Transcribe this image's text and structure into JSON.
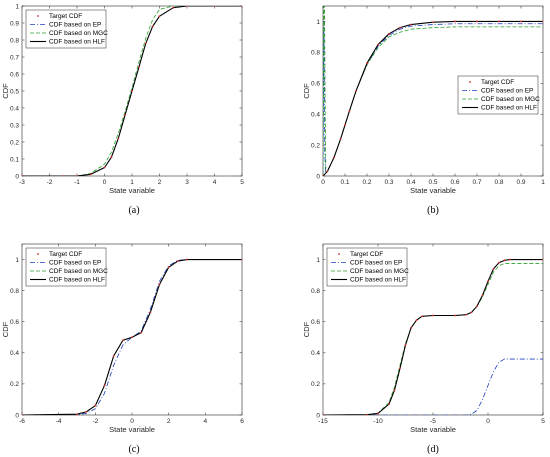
{
  "chart_data": [
    {
      "type": "line",
      "caption": "(a)",
      "xlabel": "State variable",
      "ylabel": "CDF",
      "xlim": [
        -3,
        5
      ],
      "ylim": [
        0,
        1
      ],
      "xticks": [
        "-3",
        "-2",
        "-1",
        "0",
        "1",
        "2",
        "3",
        "4",
        "5"
      ],
      "yticks": [
        "0",
        "0.1",
        "0.2",
        "0.3",
        "0.4",
        "0.5",
        "0.6",
        "0.7",
        "0.8",
        "0.9",
        "1"
      ],
      "legend_position": "top-left",
      "series": [
        {
          "name": "Target CDF",
          "style": "dots",
          "color": "#d62728",
          "x": [
            -3,
            -1.5,
            -1,
            -0.5,
            0,
            0.25,
            0.5,
            0.75,
            1,
            1.25,
            1.5,
            1.75,
            2,
            2.5,
            3,
            4,
            5
          ],
          "y": [
            0,
            0,
            0,
            0.01,
            0.05,
            0.11,
            0.22,
            0.36,
            0.5,
            0.64,
            0.78,
            0.88,
            0.94,
            0.99,
            1,
            1,
            1
          ]
        },
        {
          "name": "CDF based on EP",
          "style": "dashdot",
          "color": "#1f3fbf",
          "x": [
            -3,
            -1.5,
            -1,
            -0.5,
            0,
            0.25,
            0.5,
            0.75,
            1,
            1.25,
            1.5,
            1.75,
            2,
            2.5,
            3,
            4,
            5
          ],
          "y": [
            0,
            0,
            0,
            0.01,
            0.05,
            0.11,
            0.22,
            0.36,
            0.5,
            0.64,
            0.78,
            0.88,
            0.94,
            0.99,
            1,
            1,
            1
          ]
        },
        {
          "name": "CDF based on MGC",
          "style": "dashed",
          "color": "#2ca02c",
          "x": [
            -3,
            -1.5,
            -1,
            -0.5,
            0,
            0.25,
            0.5,
            0.75,
            1,
            1.25,
            1.5,
            1.75,
            2,
            2.5,
            3,
            4,
            5
          ],
          "y": [
            0,
            0,
            0,
            0.015,
            0.07,
            0.14,
            0.25,
            0.38,
            0.52,
            0.67,
            0.81,
            0.92,
            0.98,
            1,
            1,
            1,
            1
          ]
        },
        {
          "name": "CDF based on HLF",
          "style": "solid",
          "color": "#000000",
          "x": [
            -3,
            -1.5,
            -1,
            -0.5,
            0,
            0.25,
            0.5,
            0.75,
            1,
            1.25,
            1.5,
            1.75,
            2,
            2.5,
            3,
            4,
            5
          ],
          "y": [
            0,
            0,
            0,
            0.01,
            0.05,
            0.11,
            0.22,
            0.36,
            0.5,
            0.64,
            0.78,
            0.88,
            0.94,
            0.99,
            1,
            1,
            1
          ]
        }
      ]
    },
    {
      "type": "line",
      "caption": "(b)",
      "xlabel": "State variable",
      "ylabel": "CDF",
      "xlim": [
        0,
        1
      ],
      "ylim": [
        0,
        1.1
      ],
      "xticks": [
        "0",
        "0.1",
        "0.2",
        "0.3",
        "0.4",
        "0.5",
        "0.6",
        "0.7",
        "0.8",
        "0.9",
        "1"
      ],
      "yticks": [
        "0",
        "0.2",
        "0.4",
        "0.6",
        "0.8",
        "1"
      ],
      "legend_position": "middle-right",
      "series": [
        {
          "name": "Target CDF",
          "style": "dots",
          "color": "#d62728",
          "x": [
            0,
            0.02,
            0.05,
            0.08,
            0.1,
            0.12,
            0.15,
            0.2,
            0.25,
            0.3,
            0.35,
            0.4,
            0.5,
            0.6,
            0.7,
            0.8,
            0.9,
            1
          ],
          "y": [
            0,
            0.03,
            0.12,
            0.24,
            0.33,
            0.42,
            0.55,
            0.73,
            0.85,
            0.92,
            0.96,
            0.98,
            0.995,
            1,
            1,
            1,
            1,
            1
          ]
        },
        {
          "name": "CDF based on EP",
          "style": "dashdot",
          "color": "#1f3fbf",
          "x": [
            0,
            0.004,
            0.006,
            0.008,
            0.012,
            0.02,
            0.05,
            0.08,
            0.1,
            0.12,
            0.15,
            0.2,
            0.25,
            0.3,
            0.35,
            0.4,
            0.5,
            0.6,
            0.7,
            0.8,
            0.9,
            1
          ],
          "y": [
            0,
            1.0,
            0.6,
            0.15,
            0.02,
            0.03,
            0.12,
            0.24,
            0.33,
            0.42,
            0.55,
            0.72,
            0.84,
            0.91,
            0.95,
            0.97,
            0.98,
            0.985,
            0.985,
            0.985,
            0.985,
            0.985
          ]
        },
        {
          "name": "CDF based on MGC",
          "style": "dashed",
          "color": "#2ca02c",
          "x": [
            0,
            0.004,
            0.007,
            0.01,
            0.013,
            0.02,
            0.05,
            0.08,
            0.1,
            0.12,
            0.15,
            0.2,
            0.25,
            0.3,
            0.35,
            0.4,
            0.5,
            0.6,
            0.7,
            0.8,
            0.9,
            1
          ],
          "y": [
            0,
            1.1,
            1.1,
            0.4,
            0.03,
            0.03,
            0.12,
            0.24,
            0.33,
            0.42,
            0.55,
            0.72,
            0.83,
            0.9,
            0.93,
            0.95,
            0.96,
            0.965,
            0.965,
            0.965,
            0.965,
            0.965
          ]
        },
        {
          "name": "CDF based on HLF",
          "style": "solid",
          "color": "#000000",
          "x": [
            0,
            0.02,
            0.05,
            0.08,
            0.1,
            0.12,
            0.15,
            0.2,
            0.25,
            0.3,
            0.35,
            0.4,
            0.5,
            0.6,
            0.7,
            0.8,
            0.9,
            1
          ],
          "y": [
            0,
            0.03,
            0.12,
            0.24,
            0.33,
            0.42,
            0.55,
            0.73,
            0.85,
            0.92,
            0.96,
            0.98,
            0.995,
            1,
            1,
            1,
            1,
            1
          ]
        }
      ]
    },
    {
      "type": "line",
      "caption": "(c)",
      "xlabel": "State variable",
      "ylabel": "CDF",
      "xlim": [
        -6,
        6
      ],
      "ylim": [
        0,
        1.1
      ],
      "xticks": [
        "-6",
        "-4",
        "-2",
        "0",
        "2",
        "4",
        "6"
      ],
      "yticks": [
        "0",
        "0.2",
        "0.4",
        "0.6",
        "0.8",
        "1"
      ],
      "legend_position": "top-left",
      "series": [
        {
          "name": "Target CDF",
          "style": "dots",
          "color": "#d62728",
          "x": [
            -6,
            -3,
            -2.5,
            -2,
            -1.5,
            -1,
            -0.5,
            0,
            0.5,
            1,
            1.5,
            2,
            2.5,
            3,
            6
          ],
          "y": [
            0,
            0.005,
            0.02,
            0.06,
            0.19,
            0.38,
            0.48,
            0.5,
            0.53,
            0.66,
            0.84,
            0.95,
            0.99,
            1,
            1
          ]
        },
        {
          "name": "CDF based on EP",
          "style": "dashdot",
          "color": "#1f3fbf",
          "x": [
            -6,
            -3,
            -2.5,
            -2,
            -1.5,
            -1,
            -0.5,
            0,
            0.5,
            1,
            1.5,
            2,
            2.5,
            3,
            6
          ],
          "y": [
            0,
            0.003,
            0.01,
            0.04,
            0.14,
            0.32,
            0.45,
            0.5,
            0.54,
            0.68,
            0.86,
            0.96,
            0.995,
            1,
            1
          ]
        },
        {
          "name": "CDF based on MGC",
          "style": "dashed",
          "color": "#2ca02c",
          "x": [
            -6,
            -3,
            -2.5,
            -2,
            -1.5,
            -1,
            -0.5,
            0,
            0.5,
            1,
            1.5,
            2,
            2.5,
            3,
            6
          ],
          "y": [
            0,
            0.005,
            0.02,
            0.06,
            0.19,
            0.38,
            0.48,
            0.5,
            0.53,
            0.66,
            0.84,
            0.95,
            0.99,
            1,
            1
          ]
        },
        {
          "name": "CDF based on HLF",
          "style": "solid",
          "color": "#000000",
          "x": [
            -6,
            -3,
            -2.5,
            -2,
            -1.5,
            -1,
            -0.5,
            0,
            0.5,
            1,
            1.5,
            2,
            2.5,
            3,
            6
          ],
          "y": [
            0,
            0.005,
            0.02,
            0.06,
            0.19,
            0.38,
            0.48,
            0.5,
            0.53,
            0.66,
            0.84,
            0.95,
            0.99,
            1,
            1
          ]
        }
      ]
    },
    {
      "type": "line",
      "caption": "(d)",
      "xlabel": "State variable",
      "ylabel": "CDF",
      "xlim": [
        -15,
        5
      ],
      "ylim": [
        0,
        1.1
      ],
      "xticks": [
        "-15",
        "-10",
        "-5",
        "0",
        "5"
      ],
      "yticks": [
        "0",
        "0.2",
        "0.4",
        "0.6",
        "0.8",
        "1"
      ],
      "legend_position": "top-left",
      "series": [
        {
          "name": "Target CDF",
          "style": "dots",
          "color": "#d62728",
          "x": [
            -15,
            -11,
            -10,
            -9,
            -8.5,
            -8,
            -7.5,
            -7,
            -6.5,
            -6,
            -5,
            -3,
            -2,
            -1.5,
            -1,
            -0.5,
            0,
            0.5,
            1,
            1.5,
            2,
            5
          ],
          "y": [
            0,
            0.002,
            0.01,
            0.07,
            0.16,
            0.3,
            0.45,
            0.56,
            0.61,
            0.635,
            0.64,
            0.64,
            0.645,
            0.66,
            0.7,
            0.77,
            0.86,
            0.94,
            0.98,
            0.995,
            1,
            1
          ]
        },
        {
          "name": "CDF based on EP",
          "style": "dashdot",
          "color": "#1f3fbf",
          "x": [
            -15,
            -2,
            -1.5,
            -1,
            -0.5,
            0,
            0.5,
            1,
            1.5,
            2,
            5
          ],
          "y": [
            0,
            0,
            0.005,
            0.03,
            0.1,
            0.19,
            0.28,
            0.34,
            0.36,
            0.36,
            0.36
          ]
        },
        {
          "name": "CDF based on MGC",
          "style": "dashed",
          "color": "#2ca02c",
          "x": [
            -15,
            -11,
            -10,
            -9,
            -8.5,
            -8,
            -7.5,
            -7,
            -6.5,
            -6,
            -5,
            -3,
            -2,
            -1.5,
            -1,
            -0.5,
            0,
            0.5,
            1,
            1.5,
            2,
            5
          ],
          "y": [
            0,
            0.002,
            0.012,
            0.08,
            0.18,
            0.32,
            0.46,
            0.56,
            0.61,
            0.635,
            0.64,
            0.64,
            0.645,
            0.66,
            0.7,
            0.76,
            0.84,
            0.92,
            0.96,
            0.975,
            0.975,
            0.975
          ]
        },
        {
          "name": "CDF based on HLF",
          "style": "solid",
          "color": "#000000",
          "x": [
            -15,
            -11,
            -10,
            -9,
            -8.5,
            -8,
            -7.5,
            -7,
            -6.5,
            -6,
            -5,
            -3,
            -2,
            -1.5,
            -1,
            -0.5,
            0,
            0.5,
            1,
            1.5,
            2,
            5
          ],
          "y": [
            0,
            0.002,
            0.01,
            0.07,
            0.16,
            0.3,
            0.45,
            0.56,
            0.61,
            0.635,
            0.64,
            0.64,
            0.645,
            0.66,
            0.7,
            0.77,
            0.86,
            0.94,
            0.98,
            0.995,
            1,
            1
          ]
        }
      ]
    }
  ]
}
